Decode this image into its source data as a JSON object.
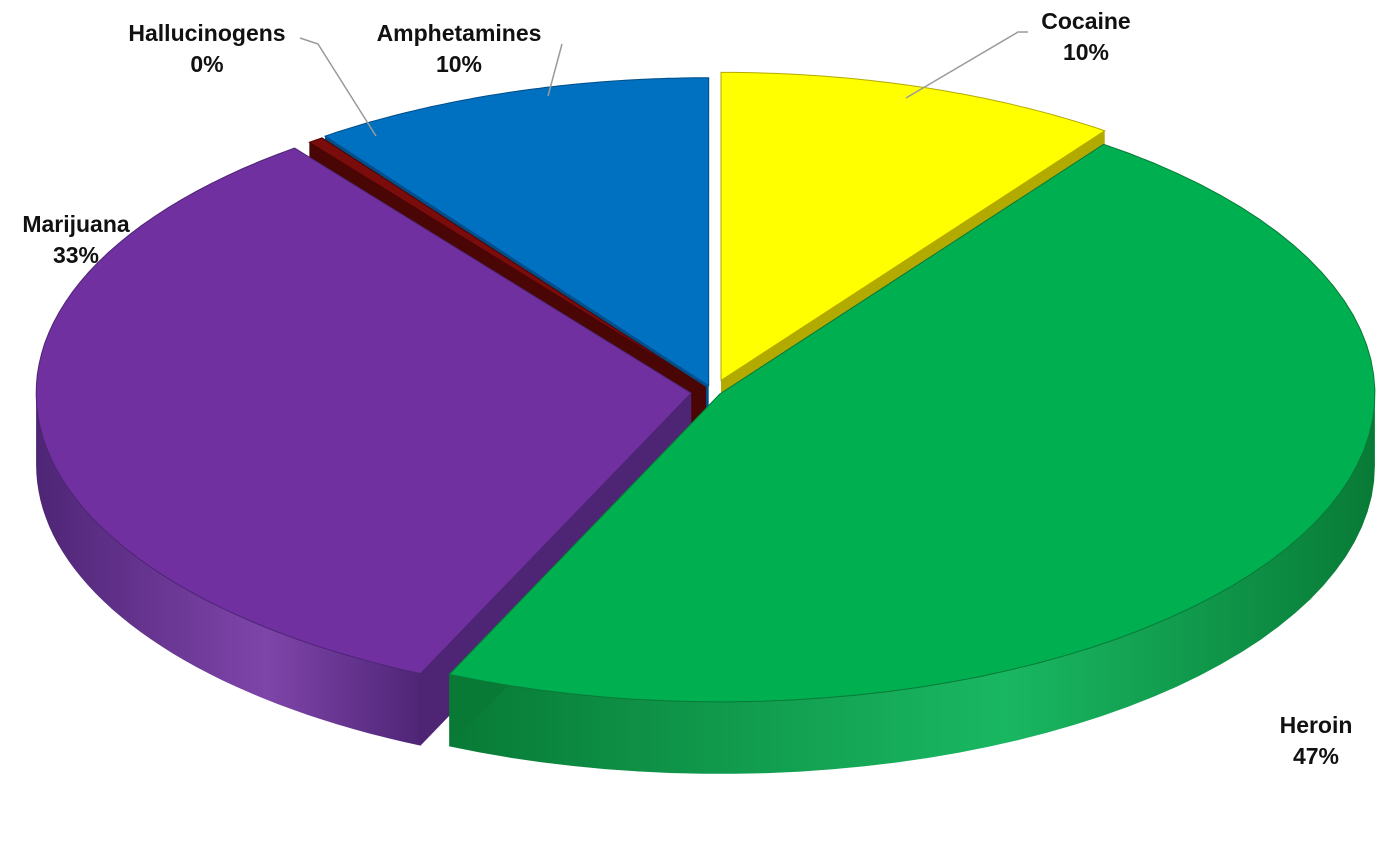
{
  "chart_data": {
    "type": "pie",
    "style": "3d-exploded",
    "slices": [
      {
        "label": "Cocaine",
        "value": 10,
        "pct_label": "10%",
        "color": "#FFFF00",
        "side_color": "#B3AA00",
        "exploded": true
      },
      {
        "label": "Heroin",
        "value": 47,
        "pct_label": "47%",
        "color": "#00AF50",
        "side_color": "#087A36",
        "exploded": true
      },
      {
        "label": "Marijuana",
        "value": 33,
        "pct_label": "33%",
        "color": "#7030A0",
        "side_color": "#4E2575",
        "exploded": true
      },
      {
        "label": "Hallucinogens",
        "value": 0,
        "pct_label": "0%",
        "color": "#7A0C0C",
        "side_color": "#4A0505",
        "exploded": true
      },
      {
        "label": "Amphetamines",
        "value": 10,
        "pct_label": "10%",
        "color": "#0070C0",
        "side_color": "#004E8A",
        "exploded": true
      }
    ],
    "legend": "none",
    "data_labels": "outside with leader lines"
  }
}
